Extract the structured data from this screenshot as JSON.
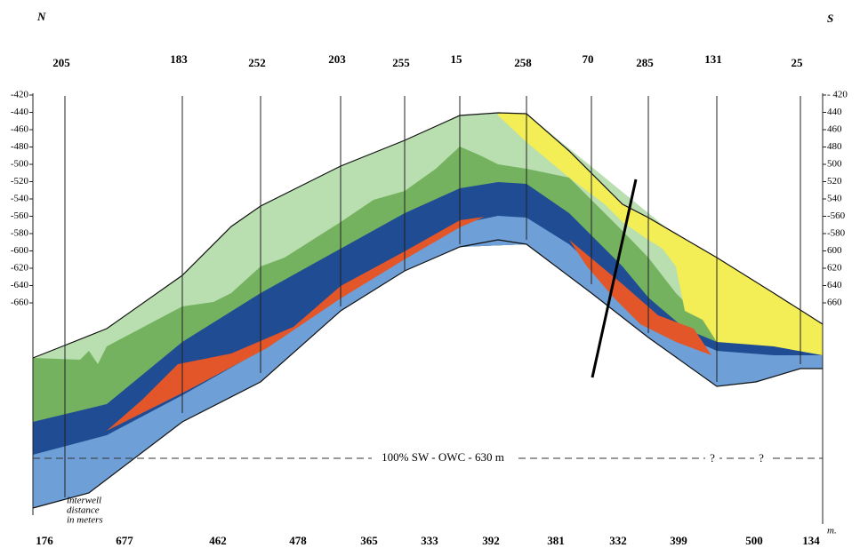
{
  "header": {
    "north": "N",
    "south": "S"
  },
  "wells": [
    "205",
    "183",
    "252",
    "203",
    "255",
    "15",
    "258",
    "70",
    "285",
    "131",
    "25"
  ],
  "depth_left": [
    "-420",
    "-440",
    "-460",
    "-480",
    "-500",
    "-520",
    "-540",
    "-560",
    "-580",
    "-600",
    "-620",
    "-640",
    "-660"
  ],
  "depth_right": [
    "- 420",
    "440",
    "460",
    "480",
    "500",
    "520",
    "540",
    "-560",
    "-580",
    "600",
    "620",
    "640",
    "660"
  ],
  "depth_unit": "m.",
  "distances": [
    "176",
    "677",
    "462",
    "478",
    "365",
    "333",
    "392",
    "381",
    "332",
    "399",
    "500",
    "134"
  ],
  "owc_label": "100% SW - OWC - 630 m",
  "question_marks": [
    "?",
    "?"
  ],
  "distance_note": [
    "interwell",
    "distance",
    "in meters"
  ]
}
